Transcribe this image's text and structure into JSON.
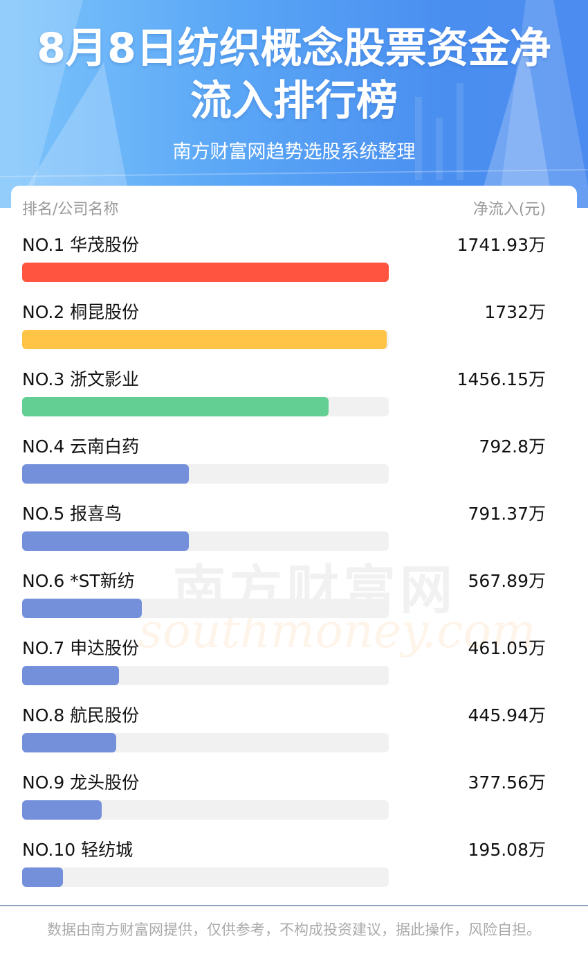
{
  "header": {
    "title_line_1": "8月8日纺织概念股票资金净",
    "title_line_2": "流入排行榜",
    "subtitle": "南方财富网趋势选股系统整理",
    "bg_color_left": "#7cc4fb",
    "bg_color_right": "#4c8cf0"
  },
  "table": {
    "col_left": "排名/公司名称",
    "col_right": "净流入(元)"
  },
  "chart_data": {
    "type": "bar",
    "orientation": "horizontal",
    "unit": "万",
    "categories": [
      "NO.1 华茂股份",
      "NO.2 桐昆股份",
      "NO.3 浙文影业",
      "NO.4 云南白药",
      "NO.5 报喜鸟",
      "NO.6 *ST新纺",
      "NO.7 申达股份",
      "NO.8 航民股份",
      "NO.9 龙头股份",
      "NO.10 轻纺城"
    ],
    "values": [
      1741.93,
      1732,
      1456.15,
      792.8,
      791.37,
      567.89,
      461.05,
      445.94,
      377.56,
      195.08
    ],
    "value_labels": [
      "1741.93万",
      "1732万",
      "1456.15万",
      "792.8万",
      "791.37万",
      "567.89万",
      "461.05万",
      "445.94万",
      "377.56万",
      "195.08万"
    ],
    "colors": [
      "#ff5540",
      "#ffc445",
      "#64cf93",
      "#7590db",
      "#7590db",
      "#7590db",
      "#7590db",
      "#7590db",
      "#7590db",
      "#7590db"
    ],
    "track_color": "#f1f1f1",
    "max": 1741.93
  },
  "watermark": {
    "cn": "南方财富网",
    "en": "southmoney.com"
  },
  "footer": {
    "text": "数据由南方财富网提供，仅供参考，不构成投资建议，据此操作，风险自担。"
  }
}
